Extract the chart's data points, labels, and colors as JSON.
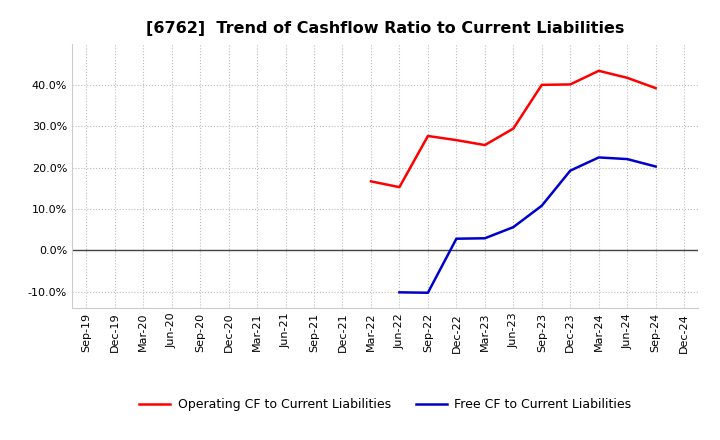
{
  "title": "[6762]  Trend of Cashflow Ratio to Current Liabilities",
  "title_fontsize": 11.5,
  "background_color": "#ffffff",
  "plot_bg_color": "#ffffff",
  "x_labels": [
    "Sep-19",
    "Dec-19",
    "Mar-20",
    "Jun-20",
    "Sep-20",
    "Dec-20",
    "Mar-21",
    "Jun-21",
    "Sep-21",
    "Dec-21",
    "Mar-22",
    "Jun-22",
    "Sep-22",
    "Dec-22",
    "Mar-23",
    "Jun-23",
    "Sep-23",
    "Dec-23",
    "Mar-24",
    "Jun-24",
    "Sep-24",
    "Dec-24"
  ],
  "operating_cf": [
    null,
    null,
    null,
    null,
    null,
    null,
    null,
    null,
    null,
    null,
    0.167,
    0.153,
    0.277,
    0.267,
    0.255,
    0.295,
    0.401,
    0.402,
    0.435,
    0.418,
    0.393,
    null
  ],
  "free_cf": [
    null,
    null,
    null,
    null,
    null,
    null,
    null,
    null,
    null,
    null,
    null,
    -0.102,
    -0.103,
    0.028,
    0.029,
    0.056,
    0.108,
    0.193,
    0.225,
    0.221,
    0.203,
    null
  ],
  "ylim": [
    -0.14,
    0.5
  ],
  "yticks": [
    -0.1,
    0.0,
    0.1,
    0.2,
    0.3,
    0.4
  ],
  "y_labels": [
    "-10.0%",
    "0.0%",
    "10.0%",
    "20.0%",
    "30.0%",
    "40.0%"
  ],
  "operating_color": "#ff0000",
  "free_color": "#0000cd",
  "legend_op": "Operating CF to Current Liabilities",
  "legend_free": "Free CF to Current Liabilities",
  "grid_color": "#bbbbbb",
  "line_width": 1.8,
  "zero_line_color": "#444444",
  "tick_fontsize": 8.0,
  "legend_fontsize": 9.0
}
